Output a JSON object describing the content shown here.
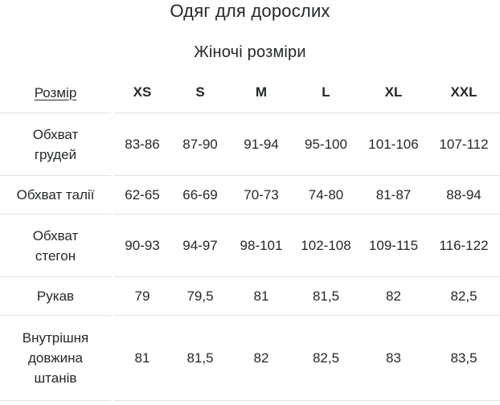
{
  "page": {
    "title": "Одяг для дорослих",
    "subtitle": "Жіночі розміри"
  },
  "table": {
    "size_header": "Розмір",
    "columns": [
      "XS",
      "S",
      "M",
      "L",
      "XL",
      "XXL"
    ],
    "rows": [
      {
        "label": "Обхват\nгрудей",
        "values": [
          "83-86",
          "87-90",
          "91-94",
          "95-100",
          "101-106",
          "107-112"
        ]
      },
      {
        "label": "Обхват талії",
        "values": [
          "62-65",
          "66-69",
          "70-73",
          "74-80",
          "81-87",
          "88-94"
        ]
      },
      {
        "label": "Обхват\nстегон",
        "values": [
          "90-93",
          "94-97",
          "98-101",
          "102-108",
          "109-115",
          "116-122"
        ]
      },
      {
        "label": "Рукав",
        "values": [
          "79",
          "79,5",
          "81",
          "81,5",
          "82",
          "82,5"
        ]
      },
      {
        "label": "Внутрішня\nдовжина\nштанів",
        "values": [
          "81",
          "81,5",
          "82",
          "82,5",
          "83",
          "83,5"
        ]
      }
    ]
  },
  "colors": {
    "text": "#24282b",
    "border": "#e2e2e2",
    "background": "#ffffff"
  }
}
